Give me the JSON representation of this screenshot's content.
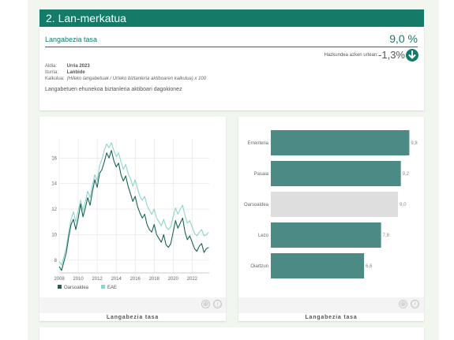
{
  "section": {
    "title": "2. Lan-merkatua"
  },
  "indicator": {
    "title": "Langabezia tasa",
    "value": "9,0 %",
    "change_label": "Hazkundea azken urtean:",
    "change_value": "-1,3%",
    "meta": [
      {
        "key": "Aldia:",
        "value": "Urria 2023"
      },
      {
        "key": "Iturria:",
        "value": "Lanbide"
      },
      {
        "key": "Kalkulua:",
        "value": "(Hileko langabetuak / Urteko biztanleria aktiboaren kalkulua) x 100"
      }
    ],
    "description": "Langabetuen ehunekoa biztanleria aktiboari dagokionez"
  },
  "colors": {
    "accent": "#137b68",
    "bar_primary": "#4c8a86",
    "bar_highlight": "#dedede",
    "line_secondary": "#8ed4cc"
  },
  "icons": {
    "change": "arrow-down-icon",
    "zoom": "plus-circle-icon",
    "info": "info-icon"
  },
  "footer_icons": {
    "zoom": "⊕",
    "info": "ⓘ"
  },
  "left_card": {
    "caption": "Langabezia tasa"
  },
  "right_card": {
    "caption": "Langabezia tasa"
  },
  "chart_data": [
    {
      "type": "line",
      "x_ticks": [
        "2008",
        "2010",
        "2012",
        "2014",
        "2016",
        "2018",
        "2020",
        "2022"
      ],
      "y_ticks": [
        "8",
        "10",
        "12",
        "14",
        "16"
      ],
      "ylim": [
        7,
        17.5
      ],
      "xlim": [
        2008,
        2023.8
      ],
      "grid": true,
      "legend_position": "bottom-left",
      "series": [
        {
          "name": "Oarsoaldea",
          "color": "#1a6357",
          "points": [
            [
              2008.0,
              7.5
            ],
            [
              2008.25,
              7.2
            ],
            [
              2008.5,
              7.9
            ],
            [
              2008.75,
              8.6
            ],
            [
              2009.0,
              9.8
            ],
            [
              2009.25,
              10.8
            ],
            [
              2009.5,
              11.2
            ],
            [
              2009.75,
              10.4
            ],
            [
              2010.0,
              11.3
            ],
            [
              2010.25,
              12.4
            ],
            [
              2010.5,
              11.4
            ],
            [
              2010.75,
              12.1
            ],
            [
              2011.0,
              12.9
            ],
            [
              2011.25,
              12.3
            ],
            [
              2011.5,
              13.4
            ],
            [
              2011.75,
              14.3
            ],
            [
              2012.0,
              13.7
            ],
            [
              2012.25,
              14.8
            ],
            [
              2012.5,
              15.1
            ],
            [
              2012.75,
              15.7
            ],
            [
              2013.0,
              16.4
            ],
            [
              2013.25,
              16.0
            ],
            [
              2013.5,
              16.6
            ],
            [
              2013.75,
              15.8
            ],
            [
              2014.0,
              15.3
            ],
            [
              2014.25,
              15.6
            ],
            [
              2014.5,
              14.7
            ],
            [
              2014.75,
              14.2
            ],
            [
              2015.0,
              14.6
            ],
            [
              2015.25,
              13.8
            ],
            [
              2015.5,
              13.2
            ],
            [
              2015.75,
              12.6
            ],
            [
              2016.0,
              13.0
            ],
            [
              2016.25,
              12.2
            ],
            [
              2016.5,
              11.7
            ],
            [
              2016.75,
              11.3
            ],
            [
              2017.0,
              11.6
            ],
            [
              2017.25,
              10.8
            ],
            [
              2017.5,
              10.4
            ],
            [
              2017.75,
              10.2
            ],
            [
              2018.0,
              10.8
            ],
            [
              2018.25,
              10.0
            ],
            [
              2018.5,
              9.7
            ],
            [
              2018.75,
              9.4
            ],
            [
              2019.0,
              10.0
            ],
            [
              2019.25,
              9.2
            ],
            [
              2019.5,
              9.0
            ],
            [
              2019.75,
              9.3
            ],
            [
              2020.0,
              10.2
            ],
            [
              2020.25,
              11.1
            ],
            [
              2020.5,
              10.5
            ],
            [
              2020.75,
              10.9
            ],
            [
              2021.0,
              11.3
            ],
            [
              2021.25,
              10.2
            ],
            [
              2021.5,
              9.6
            ],
            [
              2021.75,
              9.9
            ],
            [
              2022.0,
              9.4
            ],
            [
              2022.25,
              8.9
            ],
            [
              2022.5,
              8.7
            ],
            [
              2022.75,
              9.1
            ],
            [
              2023.0,
              9.3
            ],
            [
              2023.25,
              8.6
            ],
            [
              2023.5,
              8.9
            ],
            [
              2023.75,
              9.0
            ]
          ]
        },
        {
          "name": "EAE",
          "color": "#8ed4cc",
          "points": [
            [
              2008.0,
              7.9
            ],
            [
              2008.25,
              7.6
            ],
            [
              2008.5,
              8.3
            ],
            [
              2008.75,
              9.0
            ],
            [
              2009.0,
              10.2
            ],
            [
              2009.25,
              11.2
            ],
            [
              2009.5,
              11.8
            ],
            [
              2009.75,
              11.0
            ],
            [
              2010.0,
              11.9
            ],
            [
              2010.25,
              12.7
            ],
            [
              2010.5,
              11.9
            ],
            [
              2010.75,
              12.6
            ],
            [
              2011.0,
              13.4
            ],
            [
              2011.25,
              12.9
            ],
            [
              2011.5,
              13.9
            ],
            [
              2011.75,
              14.7
            ],
            [
              2012.0,
              14.2
            ],
            [
              2012.25,
              15.4
            ],
            [
              2012.5,
              15.9
            ],
            [
              2012.75,
              16.6
            ],
            [
              2013.0,
              17.1
            ],
            [
              2013.25,
              16.8
            ],
            [
              2013.5,
              17.2
            ],
            [
              2013.75,
              16.6
            ],
            [
              2014.0,
              16.1
            ],
            [
              2014.25,
              16.4
            ],
            [
              2014.5,
              15.7
            ],
            [
              2014.75,
              15.1
            ],
            [
              2015.0,
              15.5
            ],
            [
              2015.25,
              14.8
            ],
            [
              2015.5,
              14.4
            ],
            [
              2015.75,
              13.8
            ],
            [
              2016.0,
              14.3
            ],
            [
              2016.25,
              13.6
            ],
            [
              2016.5,
              13.0
            ],
            [
              2016.75,
              12.7
            ],
            [
              2017.0,
              13.0
            ],
            [
              2017.25,
              12.3
            ],
            [
              2017.5,
              11.9
            ],
            [
              2017.75,
              11.6
            ],
            [
              2018.0,
              12.0
            ],
            [
              2018.25,
              11.3
            ],
            [
              2018.5,
              11.0
            ],
            [
              2018.75,
              10.7
            ],
            [
              2019.0,
              11.2
            ],
            [
              2019.25,
              10.6
            ],
            [
              2019.5,
              10.4
            ],
            [
              2019.75,
              10.6
            ],
            [
              2020.0,
              11.4
            ],
            [
              2020.25,
              12.1
            ],
            [
              2020.5,
              11.6
            ],
            [
              2020.75,
              12.0
            ],
            [
              2021.0,
              12.3
            ],
            [
              2021.25,
              11.5
            ],
            [
              2021.5,
              10.9
            ],
            [
              2021.75,
              11.1
            ],
            [
              2022.0,
              10.6
            ],
            [
              2022.25,
              10.1
            ],
            [
              2022.5,
              9.9
            ],
            [
              2022.75,
              10.2
            ],
            [
              2023.0,
              10.4
            ],
            [
              2023.25,
              9.9
            ],
            [
              2023.5,
              10.0
            ],
            [
              2023.75,
              10.2
            ]
          ]
        }
      ]
    },
    {
      "type": "bar",
      "orientation": "horizontal",
      "categories": [
        "Errenteria",
        "Pasaia",
        "Oarsoaldea",
        "Lezo",
        "Oiartzun"
      ],
      "values": [
        9.8,
        9.2,
        9.0,
        7.8,
        6.6
      ],
      "value_labels": [
        "9,8",
        "9,2",
        "9,0",
        "7,8",
        "6,6"
      ],
      "highlight": "Oarsoaldea",
      "xlim": [
        0,
        10
      ]
    }
  ]
}
